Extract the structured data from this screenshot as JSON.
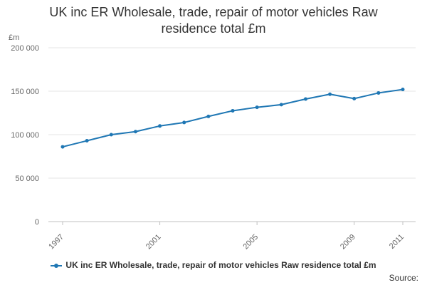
{
  "chart_data": {
    "type": "line",
    "title": [
      "UK inc ER Wholesale, trade, repair of motor vehicles Raw",
      "residence total £m"
    ],
    "ylabel": "£m",
    "xlabel": "",
    "x": [
      1997,
      1998,
      1999,
      2000,
      2001,
      2002,
      2003,
      2004,
      2005,
      2006,
      2007,
      2008,
      2009,
      2010,
      2011
    ],
    "xticks": [
      "1997",
      "2001",
      "2005",
      "2009",
      "2011"
    ],
    "yticks": [
      "0",
      "50 000",
      "100 000",
      "150 000",
      "200 000"
    ],
    "ylim": [
      0,
      200000
    ],
    "grid": true,
    "legend_position": "bottom",
    "series": [
      {
        "name": "UK inc ER Wholesale, trade, repair of motor vehicles Raw residence total £m",
        "color": "#1f77b4",
        "values": [
          86000,
          93000,
          100000,
          103500,
          110000,
          114000,
          121000,
          127500,
          131500,
          134500,
          141000,
          146500,
          141500,
          148000,
          152000
        ]
      }
    ]
  },
  "source_label": "Source:"
}
